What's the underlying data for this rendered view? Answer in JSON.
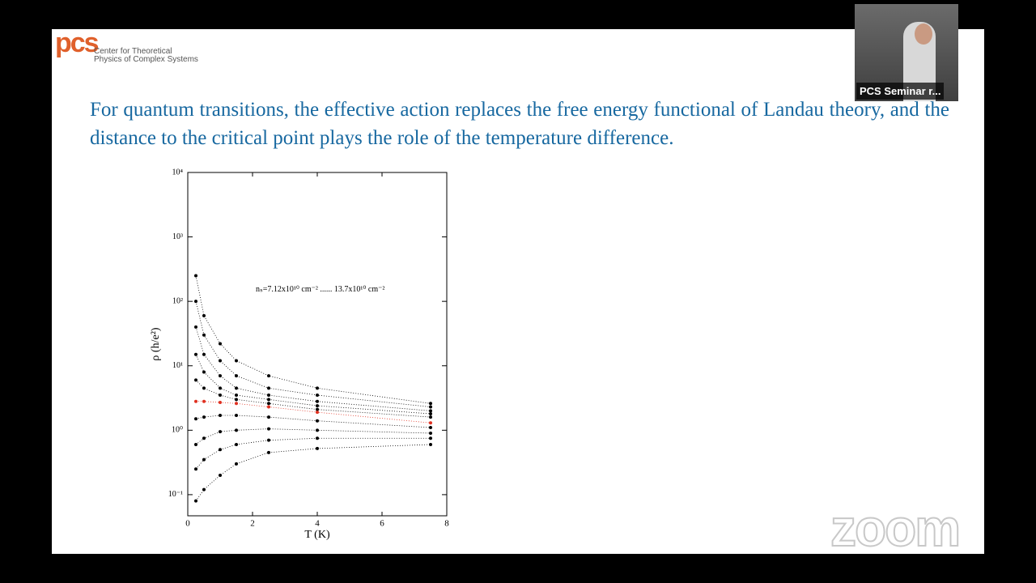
{
  "logo": {
    "mark": "pcs",
    "line1": "Center for Theoretical",
    "line2": "Physics of Complex Systems"
  },
  "slide": {
    "text": "For quantum transitions, the effective action replaces the free energy functional of Landau theory, and the distance to the critical point plays the role of the temperature difference."
  },
  "participant": {
    "name": "PCS Seminar r..."
  },
  "watermark": "zoom",
  "chart_data": {
    "type": "line",
    "x": [
      0.25,
      0.5,
      1,
      1.5,
      2.5,
      4,
      7.5
    ],
    "xlabel": "T (K)",
    "ylabel": "ρ (h/e²)",
    "annotation": "nₛ=7.12x10¹⁰ cm⁻² ...... 13.7x10¹⁰ cm⁻²",
    "ylog": true,
    "xlim": [
      0,
      8
    ],
    "xticks": [
      0,
      2,
      4,
      6,
      8
    ],
    "ylim": [
      0.047,
      10000
    ],
    "yticks": [
      {
        "value": 0.1,
        "label": "10⁻¹"
      },
      {
        "value": 1,
        "label": "10⁰"
      },
      {
        "value": 10,
        "label": "10¹"
      },
      {
        "value": 100,
        "label": "10²"
      },
      {
        "value": 1000,
        "label": "10³"
      },
      {
        "value": 10000,
        "label": "10⁴"
      }
    ],
    "series": [
      {
        "color": "#000000",
        "values": [
          250,
          60,
          22,
          12,
          7,
          4.5,
          2.6
        ]
      },
      {
        "color": "#000000",
        "values": [
          100,
          30,
          12,
          7,
          4.5,
          3.5,
          2.3
        ]
      },
      {
        "color": "#000000",
        "values": [
          40,
          15,
          7,
          4.5,
          3.5,
          2.8,
          2.0
        ]
      },
      {
        "color": "#000000",
        "values": [
          15,
          8,
          4.5,
          3.5,
          3,
          2.4,
          1.8
        ]
      },
      {
        "color": "#000000",
        "values": [
          6,
          4.5,
          3.5,
          3,
          2.6,
          2.1,
          1.6
        ]
      },
      {
        "color": "#e03020",
        "values": [
          2.8,
          2.8,
          2.7,
          2.6,
          2.3,
          1.9,
          1.3
        ]
      },
      {
        "color": "#000000",
        "values": [
          1.5,
          1.6,
          1.7,
          1.7,
          1.6,
          1.4,
          1.1
        ]
      },
      {
        "color": "#000000",
        "values": [
          0.6,
          0.75,
          0.95,
          1.0,
          1.05,
          1.0,
          0.9
        ]
      },
      {
        "color": "#000000",
        "values": [
          0.25,
          0.35,
          0.5,
          0.6,
          0.7,
          0.75,
          0.75
        ]
      },
      {
        "color": "#000000",
        "values": [
          0.08,
          0.12,
          0.2,
          0.3,
          0.45,
          0.52,
          0.6
        ]
      }
    ]
  }
}
